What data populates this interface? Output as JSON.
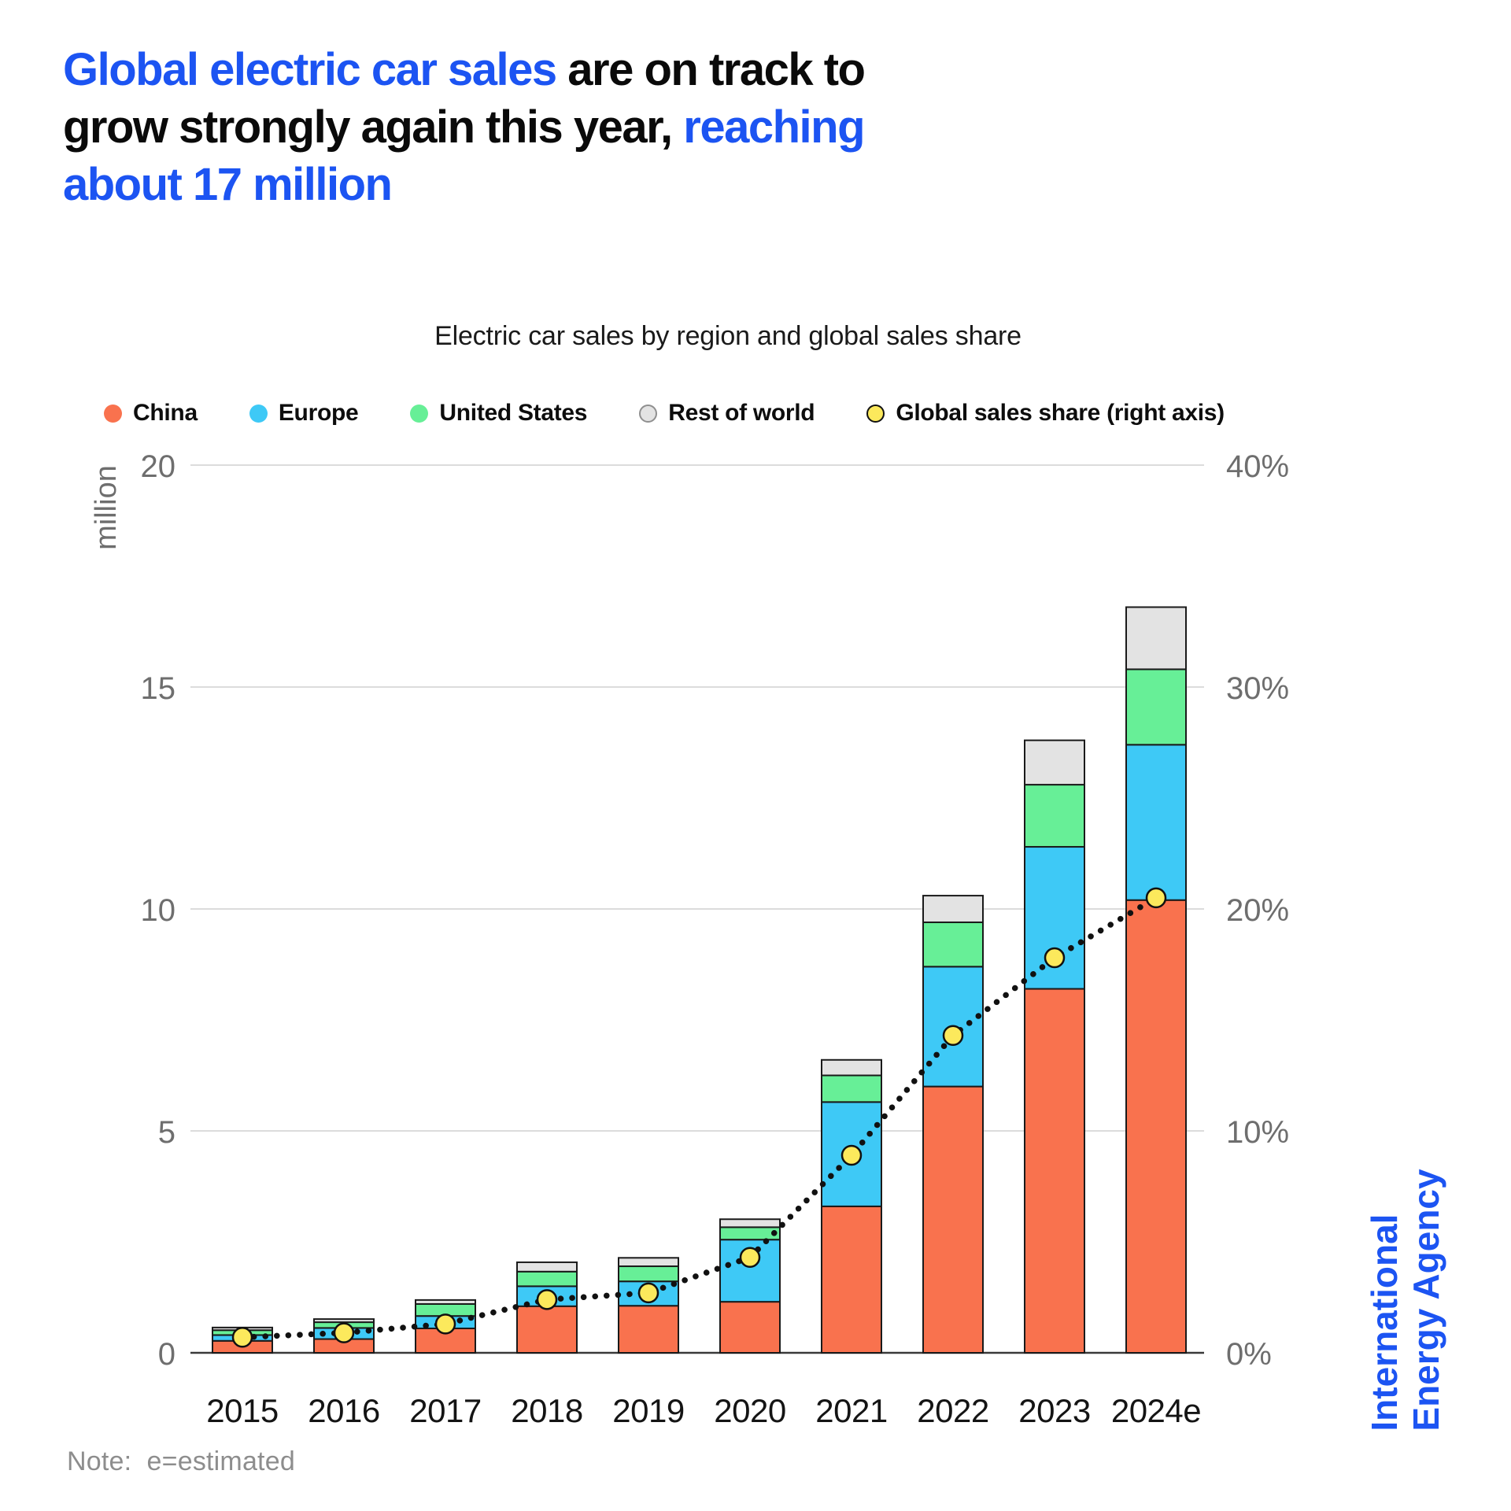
{
  "header": {
    "title": {
      "l1_blue": "Global electric car sales",
      "l1_black": " are on track to",
      "l2_black": "grow strongly again this year, ",
      "l2_blue": "reaching",
      "l3_blue": "about 17 million"
    },
    "subtitle": "Electric car sales by region and global sales share"
  },
  "colors": {
    "accent_blue": "#1c54f2",
    "grid": "#d0d0d0",
    "baseline": "#3a3a3a",
    "axis_text": "#6e6e6e",
    "note_text": "#8d8d8d",
    "bar_outline": "#1a1a1a"
  },
  "chart_data": {
    "type": "bar",
    "stacked": true,
    "title": "Electric car sales by region and global sales share",
    "unit": "million",
    "grid": "horizontal",
    "legend_position": "top",
    "categories": [
      "2015",
      "2016",
      "2017",
      "2018",
      "2019",
      "2020",
      "2021",
      "2022",
      "2023",
      "2024e"
    ],
    "series": [
      {
        "name": "China",
        "color": "#f9724e",
        "values": [
          0.27,
          0.31,
          0.55,
          1.05,
          1.06,
          1.15,
          3.3,
          6.0,
          8.2,
          10.2
        ]
      },
      {
        "name": "Europe",
        "color": "#3ec9f6",
        "values": [
          0.13,
          0.25,
          0.28,
          0.45,
          0.55,
          1.4,
          2.35,
          2.7,
          3.2,
          3.5
        ]
      },
      {
        "name": "United States",
        "color": "#67ef97",
        "values": [
          0.11,
          0.13,
          0.27,
          0.33,
          0.34,
          0.28,
          0.6,
          1.0,
          1.4,
          1.7
        ]
      },
      {
        "name": "Rest of world",
        "color": "#e3e3e3",
        "marker_border": "#8f8f8f",
        "values": [
          0.06,
          0.07,
          0.09,
          0.21,
          0.19,
          0.18,
          0.35,
          0.6,
          1.0,
          1.4
        ]
      }
    ],
    "line_series": {
      "name": "Global sales share (right axis)",
      "color": "#fce95c",
      "marker_border": "#111111",
      "axis": "right",
      "values": [
        0.7,
        0.9,
        1.3,
        2.4,
        2.7,
        4.3,
        8.9,
        14.3,
        17.8,
        20.5
      ]
    },
    "left_axis": {
      "label": "million",
      "ticks": [
        "0",
        "5",
        "10",
        "15",
        "20"
      ],
      "tick_values": [
        0,
        5,
        10,
        15,
        20
      ],
      "range": [
        0,
        20
      ]
    },
    "right_axis": {
      "ticks": [
        "0%",
        "10%",
        "20%",
        "30%",
        "40%"
      ],
      "tick_values": [
        0,
        10,
        20,
        30,
        40
      ],
      "range": [
        0,
        40
      ]
    }
  },
  "footer": {
    "note": "Note:  e=estimated"
  },
  "branding": {
    "line1": "International",
    "line2": "Energy Agency"
  }
}
